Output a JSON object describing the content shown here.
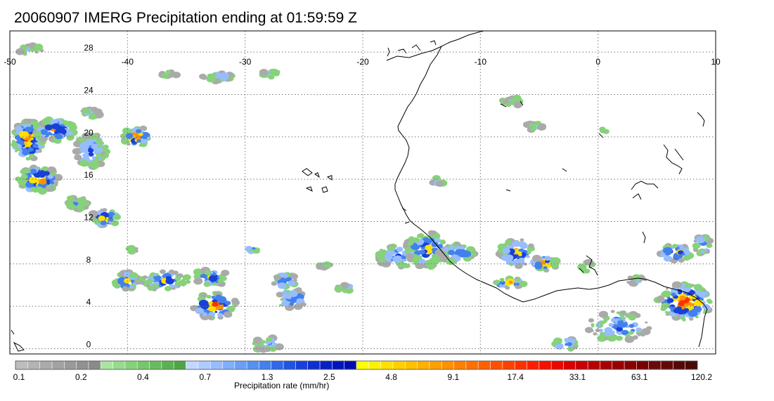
{
  "title": "20060907 IMERG Precipitation ending at 01:59:59 Z",
  "map": {
    "lon_ticks": [
      "-50",
      "-40",
      "-30",
      "-20",
      "-10",
      "0",
      "10"
    ],
    "lat_ticks": [
      "28",
      "24",
      "20",
      "16",
      "12",
      "8",
      "4",
      "0"
    ],
    "lon_range": [
      -50,
      10
    ],
    "lat_range": [
      -0.5,
      30
    ]
  },
  "colorbar": {
    "label": "Precipitation rate (mm/hr)",
    "tick_labels": [
      "0.1",
      "0.2",
      "0.4",
      "0.7",
      "1.3",
      "2.5",
      "4.8",
      "9.1",
      "17.4",
      "33.1",
      "63.1",
      "120.2"
    ],
    "colors": [
      "#bdbdbd",
      "#b3b3b3",
      "#aaaaaa",
      "#a2a2a2",
      "#999999",
      "#919191",
      "#8a8a8a",
      "#a8e6a0",
      "#96dc8c",
      "#86d27a",
      "#76c66a",
      "#68bb5c",
      "#5bb050",
      "#4fa545",
      "#c6d6ff",
      "#aecbff",
      "#97bdff",
      "#80aefc",
      "#6b9ff7",
      "#578ff2",
      "#4380ee",
      "#3168e8",
      "#2253e0",
      "#1840d8",
      "#0d2ed0",
      "#0620c6",
      "#0014bb",
      "#000dae",
      "#ffff00",
      "#fff000",
      "#ffe000",
      "#ffd000",
      "#ffc000",
      "#ffb000",
      "#ffa000",
      "#ff9000",
      "#ff8000",
      "#ff7000",
      "#ff6000",
      "#ff5000",
      "#ff4000",
      "#ff3000",
      "#ff1e00",
      "#f51000",
      "#e80800",
      "#d80000",
      "#c80000",
      "#b80000",
      "#a80000",
      "#980000",
      "#880000",
      "#7a0000",
      "#6c0808",
      "#600808",
      "#540808",
      "#4a0808"
    ]
  }
}
